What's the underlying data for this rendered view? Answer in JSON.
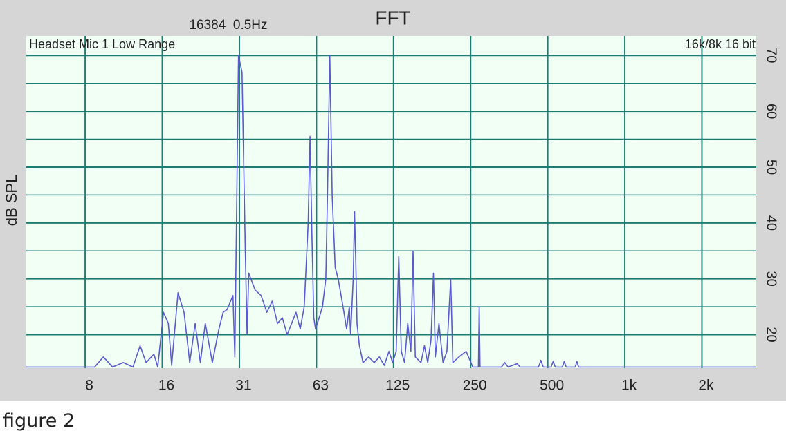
{
  "chart_data": {
    "type": "line",
    "title": "FFT",
    "subtitle": "16384  0.5Hz",
    "annotations": [
      "Headset Mic 1 Low Range",
      "16k/8k 16 bit"
    ],
    "y_label": "dB SPL",
    "x_scale": "log",
    "grid": true,
    "color": "#5a5ad2",
    "xlim": [
      4.6,
      3260
    ],
    "ylim": [
      14,
      73.5
    ],
    "xticks": [
      {
        "value": 7.8125,
        "label": "8"
      },
      {
        "value": 15.625,
        "label": "16"
      },
      {
        "value": 31.25,
        "label": "31"
      },
      {
        "value": 62.5,
        "label": "63"
      },
      125,
      250,
      500,
      {
        "value": 1000,
        "label": "1k"
      },
      {
        "value": 2000,
        "label": "2k"
      }
    ],
    "yticks": [
      20,
      30,
      40,
      50,
      60,
      70
    ],
    "yticks_minor": [
      25,
      35,
      45,
      55,
      65
    ],
    "x": [
      4.6,
      8.5,
      9.2,
      10,
      11,
      12,
      12.8,
      13.5,
      14.5,
      15,
      15.8,
      16.5,
      17,
      18,
      19,
      20,
      21,
      22,
      23,
      24.5,
      26,
      27,
      28,
      29.5,
      30,
      31,
      32,
      33,
      33.5,
      34,
      36,
      38,
      40,
      42,
      44,
      46,
      48,
      50,
      52,
      54,
      56,
      58,
      59,
      60,
      61,
      62,
      64,
      66,
      68,
      69,
      70.5,
      72,
      74,
      76,
      78,
      80,
      82,
      84,
      85,
      87,
      88,
      89,
      90,
      92,
      95,
      100,
      105,
      110,
      115,
      120,
      124,
      128,
      131,
      134,
      138,
      142,
      146,
      149,
      152,
      160,
      165,
      170,
      175,
      179,
      182,
      188,
      195,
      202,
      209,
      213,
      225,
      240,
      255,
      268,
      270,
      272,
      330,
      340,
      350,
      380,
      390,
      460,
      470,
      480,
      515,
      525,
      535,
      570,
      580,
      590,
      640,
      650,
      660,
      3260
    ],
    "values": [
      14.2,
      14.2,
      16,
      14.2,
      15,
      14.2,
      18,
      15,
      16.5,
      14.2,
      24,
      22,
      14.5,
      27.5,
      24,
      15,
      22,
      15,
      22,
      15,
      21,
      24,
      24.5,
      27,
      16,
      70,
      67,
      34,
      20,
      31,
      28,
      27,
      24,
      26,
      22,
      23,
      20,
      22,
      24,
      21,
      25,
      40,
      55.5,
      38,
      23,
      21,
      23,
      25,
      30,
      45,
      70,
      45,
      32,
      30,
      27,
      24,
      21,
      25,
      20,
      30,
      42,
      33,
      22,
      18,
      15,
      16,
      15,
      16,
      14.5,
      17,
      15,
      17,
      34,
      17,
      15,
      22,
      17,
      35,
      16,
      15,
      18,
      15,
      19,
      31,
      16,
      22,
      15,
      17,
      30,
      15,
      16,
      17,
      14.2,
      14.2,
      25,
      14.2,
      14.2,
      15,
      14.2,
      14.8,
      14.2,
      14.2,
      15.4,
      14.2,
      14.2,
      15.2,
      14.2,
      14.2,
      15.2,
      14.2,
      14.2,
      15.2,
      14.2,
      14.2
    ]
  },
  "caption": "figure 2"
}
